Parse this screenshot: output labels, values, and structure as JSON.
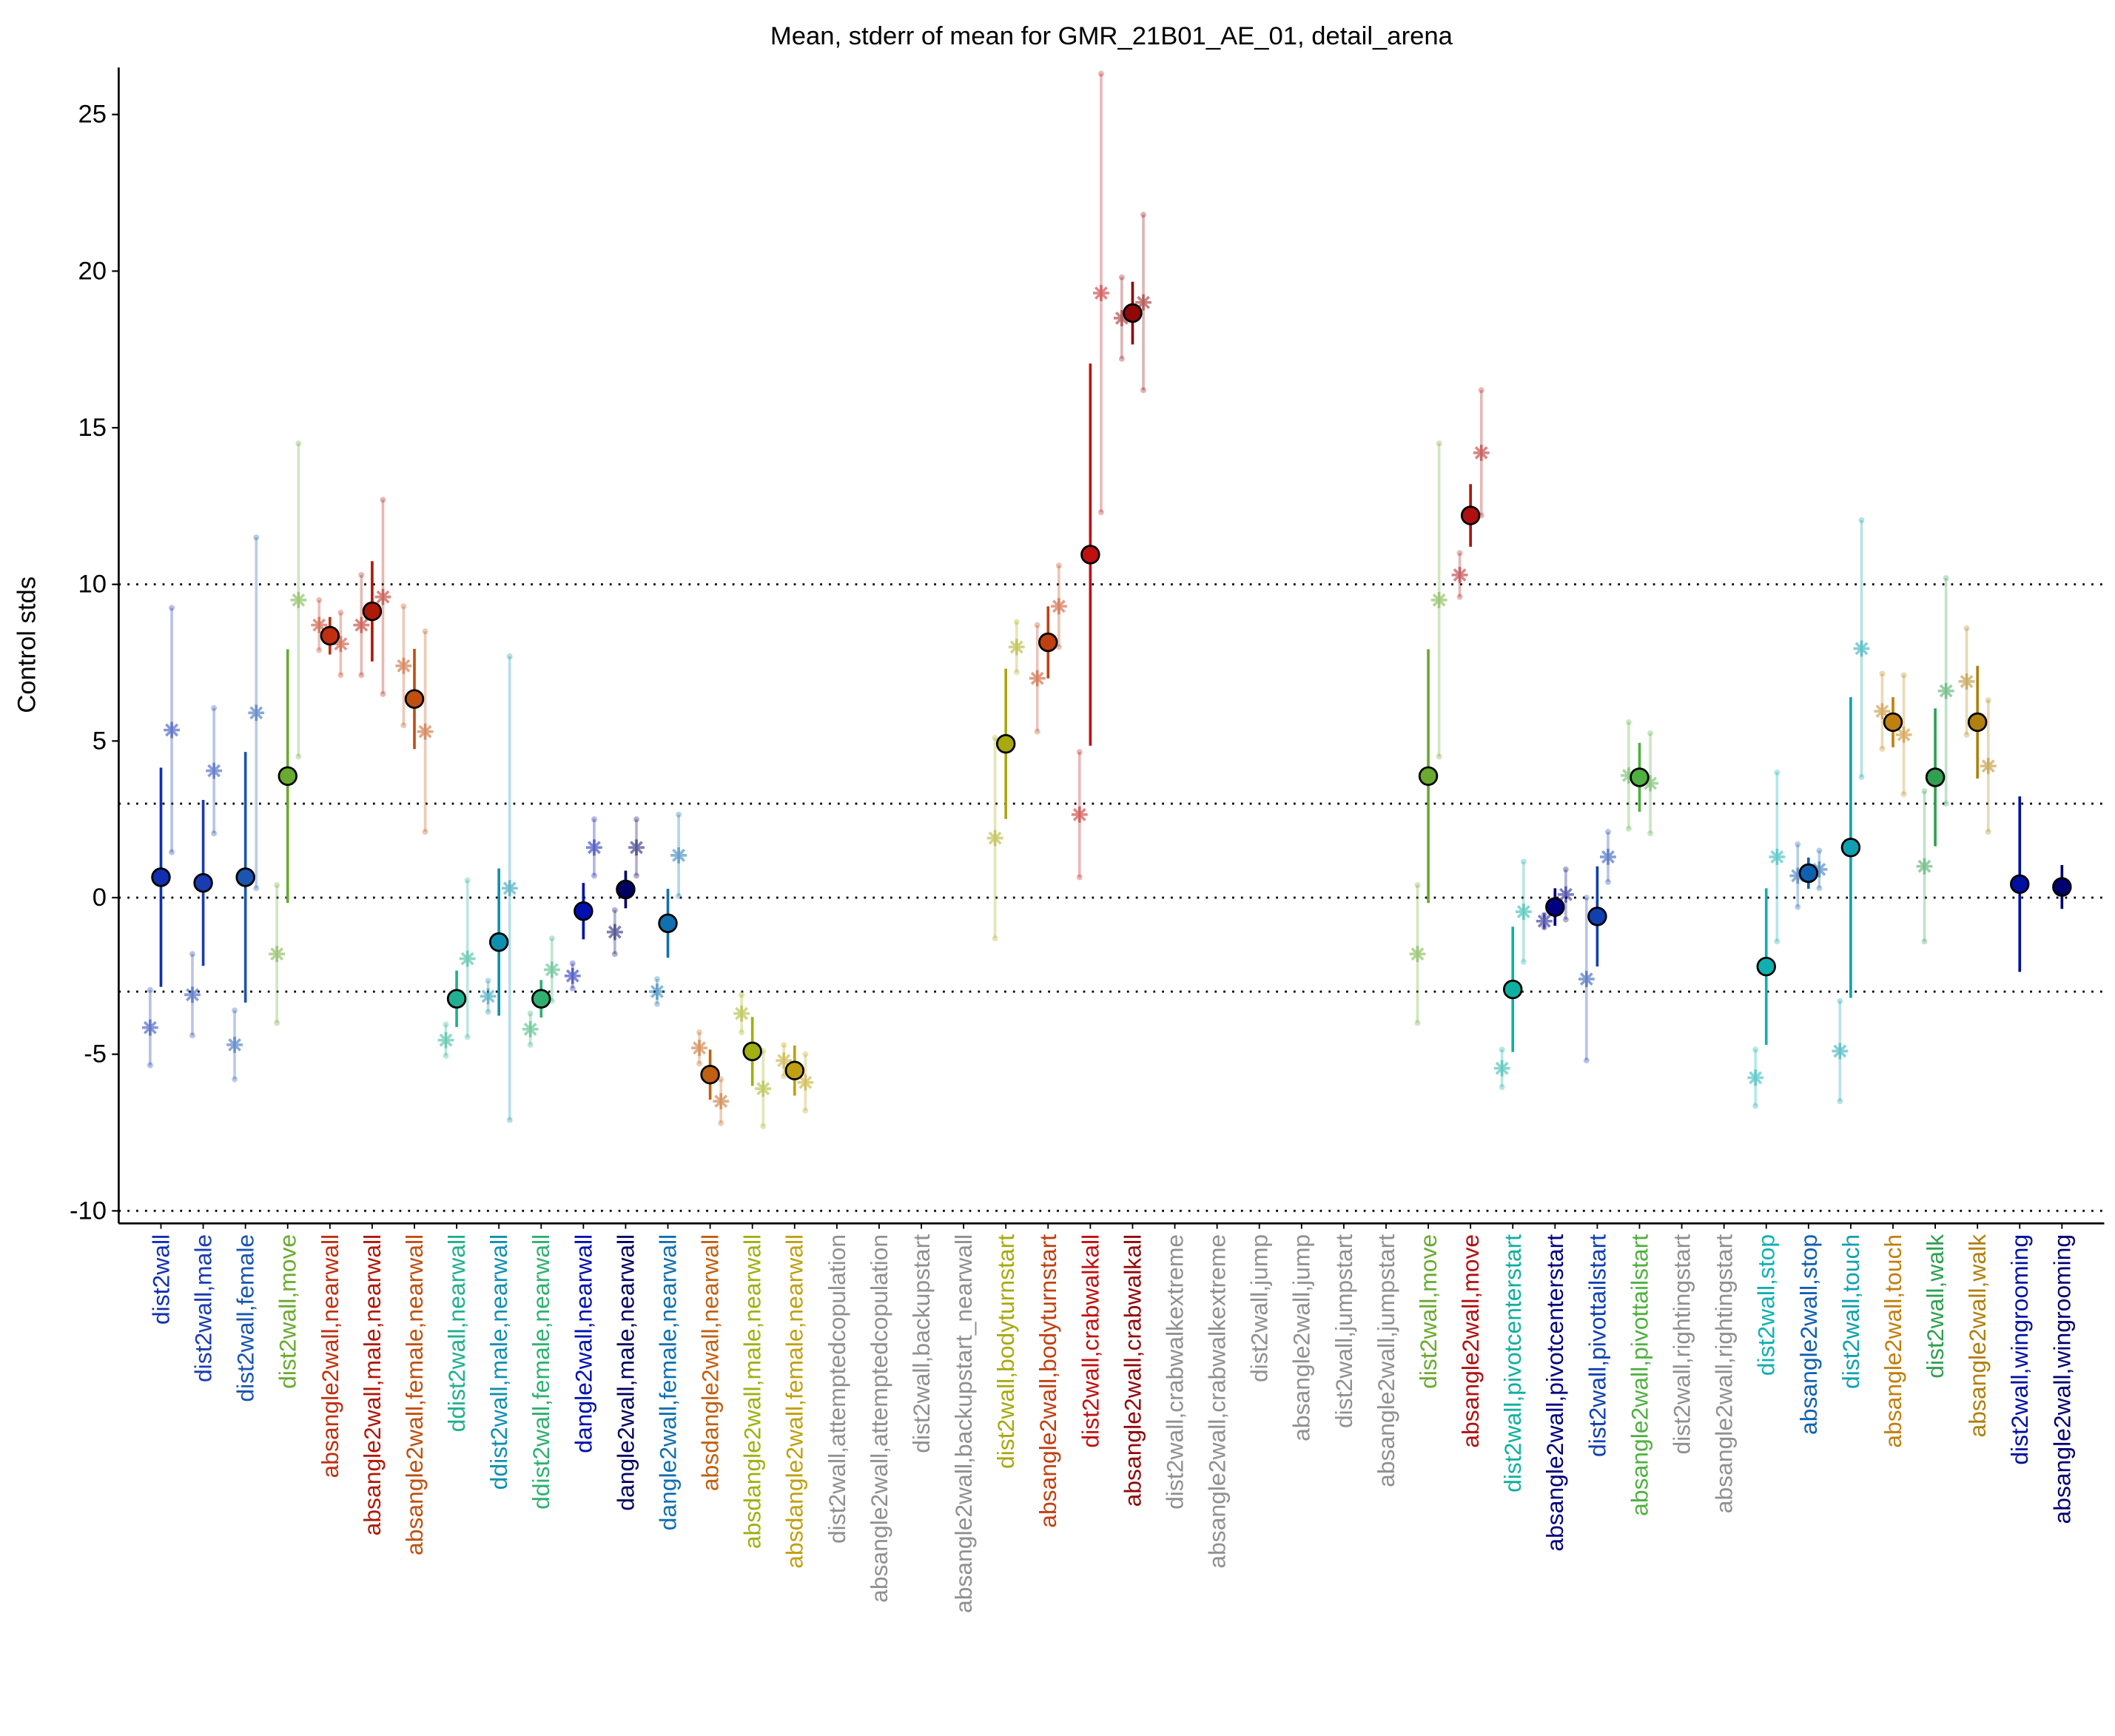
{
  "chart_data": {
    "type": "errorbar",
    "title": "Mean, stderr of mean for GMR_21B01_AE_01, detail_arena",
    "y_label": "Control stds",
    "categories": [
      "dist2wall",
      "dist2wall,male",
      "dist2wall,female",
      "dist2wall,move",
      "absangle2wall,nearwall",
      "absangle2wall,male,nearwall",
      "absangle2wall,female,nearwall",
      "ddist2wall,nearwall",
      "ddist2wall,male,nearwall",
      "ddist2wall,female,nearwall",
      "dangle2wall,nearwall",
      "dangle2wall,male,nearwall",
      "dangle2wall,female,nearwall",
      "absdangle2wall,nearwall",
      "absdangle2wall,male,nearwall",
      "absdangle2wall,female,nearwall",
      "dist2wall,attemptedcopulation",
      "absangle2wall,attemptedcopulation",
      "dist2wall,backupstart",
      "absangle2wall,backupstart_nearwall",
      "dist2wall,bodyturnstart",
      "absangle2wall,bodyturnstart",
      "dist2wall,crabwalkall",
      "absangle2wall,crabwalkall",
      "dist2wall,crabwalkextreme",
      "absangle2wall,crabwalkextreme",
      "dist2wall,jump",
      "absangle2wall,jump",
      "dist2wall,jumpstart",
      "absangle2wall,jumpstart",
      "dist2wall,move",
      "absangle2wall,move",
      "dist2wall,pivotcenterstart",
      "absangle2wall,pivotcenterstart",
      "dist2wall,pivottailstart",
      "absangle2wall,pivottailstart",
      "dist2wall,rightingstart",
      "absangle2wall,rightingstart",
      "dist2wall,stop",
      "absangle2wall,stop",
      "dist2wall,touch",
      "absangle2wall,touch",
      "dist2wall,walk",
      "absangle2wall,walk",
      "dist2wall,wingrooming",
      "absangle2wall,wingrooming"
    ],
    "colors": [
      "#1030b0",
      "#1a3cb0",
      "#1a55b0",
      "#6aaa30",
      "#c03010",
      "#b01808",
      "#c05010",
      "#20b090",
      "#1090b0",
      "#30b070",
      "#0010b0",
      "#000060",
      "#1070b0",
      "#c06010",
      "#a0b010",
      "#c0a010",
      "#909090",
      "#909090",
      "#909090",
      "#909090",
      "#a8a810",
      "#c04010",
      "#c01010",
      "#900808",
      "#909090",
      "#909090",
      "#909090",
      "#909090",
      "#909090",
      "#909090",
      "#6aaa30",
      "#b01010",
      "#10b0a0",
      "#000080",
      "#1040b0",
      "#50b040",
      "#909090",
      "#909090",
      "#10b0b0",
      "#1060b0",
      "#10a0b0",
      "#c08010",
      "#30a050",
      "#b08010",
      "#0010a0",
      "#000070"
    ],
    "values": [
      0.65,
      0.47,
      0.65,
      3.88,
      8.36,
      9.14,
      6.34,
      -3.23,
      -1.42,
      -3.23,
      -0.43,
      0.26,
      -0.82,
      -5.65,
      -4.91,
      -5.52,
      null,
      null,
      null,
      null,
      4.91,
      8.15,
      10.95,
      18.66,
      null,
      null,
      null,
      null,
      null,
      null,
      3.88,
      12.2,
      -2.93,
      -0.3,
      -0.6,
      3.84,
      null,
      null,
      -2.2,
      0.78,
      1.6,
      5.6,
      3.84,
      5.6,
      0.43,
      0.34
    ],
    "errors": [
      3.5,
      2.65,
      4.0,
      4.05,
      0.6,
      1.6,
      1.6,
      0.9,
      2.35,
      0.6,
      0.9,
      0.6,
      1.1,
      0.8,
      1.1,
      0.8,
      null,
      null,
      null,
      null,
      2.4,
      1.15,
      6.1,
      1.0,
      null,
      null,
      null,
      null,
      null,
      null,
      4.05,
      1.0,
      2.0,
      0.6,
      1.6,
      1.1,
      null,
      null,
      2.5,
      0.5,
      4.8,
      0.8,
      2.2,
      1.8,
      2.8,
      0.7
    ],
    "star_values": [
      [
        -4.15,
        5.35
      ],
      [
        -3.1,
        4.05
      ],
      [
        -4.7,
        5.9
      ],
      [
        -1.8,
        9.5
      ],
      [
        8.7,
        8.1
      ],
      [
        8.7,
        9.6
      ],
      [
        7.4,
        5.3
      ],
      [
        -4.55,
        -1.95
      ],
      [
        -3.15,
        0.3
      ],
      [
        -4.2,
        -2.3
      ],
      [
        -2.5,
        1.6
      ],
      [
        -1.1,
        1.6
      ],
      [
        -3.0,
        1.35
      ],
      [
        -4.8,
        -6.5
      ],
      [
        -3.7,
        -6.1
      ],
      [
        -5.2,
        -5.9
      ],
      null,
      null,
      null,
      null,
      [
        1.9,
        8.0
      ],
      [
        7.0,
        9.3
      ],
      [
        2.65,
        19.3
      ],
      [
        18.5,
        19.0
      ],
      null,
      null,
      null,
      null,
      null,
      null,
      [
        -1.8,
        9.5
      ],
      [
        10.3,
        14.2
      ],
      [
        -5.45,
        -0.45
      ],
      [
        -0.75,
        0.1
      ],
      [
        -2.6,
        1.3
      ],
      [
        3.9,
        3.65
      ],
      null,
      null,
      [
        -5.75,
        1.3
      ],
      [
        0.7,
        0.9
      ],
      [
        -4.9,
        7.95
      ],
      [
        5.95,
        5.2
      ],
      [
        1.0,
        6.6
      ],
      [
        6.9,
        4.2
      ],
      null,
      null
    ],
    "star_errors": [
      [
        1.2,
        3.9
      ],
      [
        1.3,
        2.0
      ],
      [
        1.1,
        5.6
      ],
      [
        2.2,
        5.0
      ],
      [
        0.8,
        1.0
      ],
      [
        1.6,
        3.1
      ],
      [
        1.9,
        3.2
      ],
      [
        0.5,
        2.5
      ],
      [
        0.5,
        7.4
      ],
      [
        0.5,
        1.0
      ],
      [
        0.4,
        0.9
      ],
      [
        0.7,
        0.9
      ],
      [
        0.4,
        1.3
      ],
      [
        0.5,
        0.7
      ],
      [
        0.6,
        1.2
      ],
      [
        0.5,
        0.9
      ],
      null,
      null,
      null,
      null,
      [
        3.2,
        0.8
      ],
      [
        1.7,
        1.3
      ],
      [
        2.0,
        7.0
      ],
      [
        1.3,
        2.8
      ],
      null,
      null,
      null,
      null,
      null,
      null,
      [
        2.2,
        5.0
      ],
      [
        0.7,
        2.0
      ],
      [
        0.6,
        1.6
      ],
      [
        0.2,
        0.8
      ],
      [
        2.6,
        0.8
      ],
      [
        1.7,
        1.6
      ],
      null,
      null,
      [
        0.9,
        2.7
      ],
      [
        1.0,
        0.6
      ],
      [
        1.6,
        4.1
      ],
      [
        1.2,
        1.9
      ],
      [
        2.4,
        3.6
      ],
      [
        1.7,
        2.1
      ],
      null,
      null
    ],
    "ylim": [
      -10.4,
      26.5
    ],
    "yticks": [
      -10,
      -5,
      0,
      5,
      10,
      15,
      20,
      25
    ],
    "reference_lines": [
      -10,
      -3,
      0,
      3,
      10
    ]
  }
}
